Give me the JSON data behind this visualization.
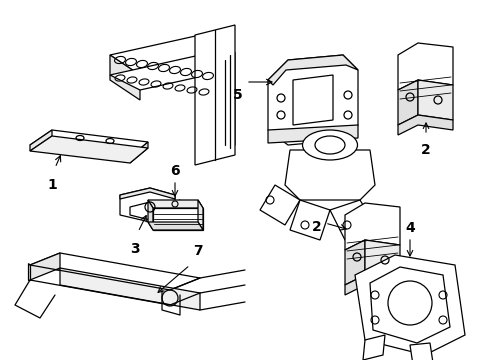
{
  "background_color": "#ffffff",
  "line_color": "#000000",
  "label_color": "#000000",
  "label_fontsize": 10,
  "label_fontweight": "bold",
  "figsize": [
    4.89,
    3.6
  ],
  "dpi": 100
}
